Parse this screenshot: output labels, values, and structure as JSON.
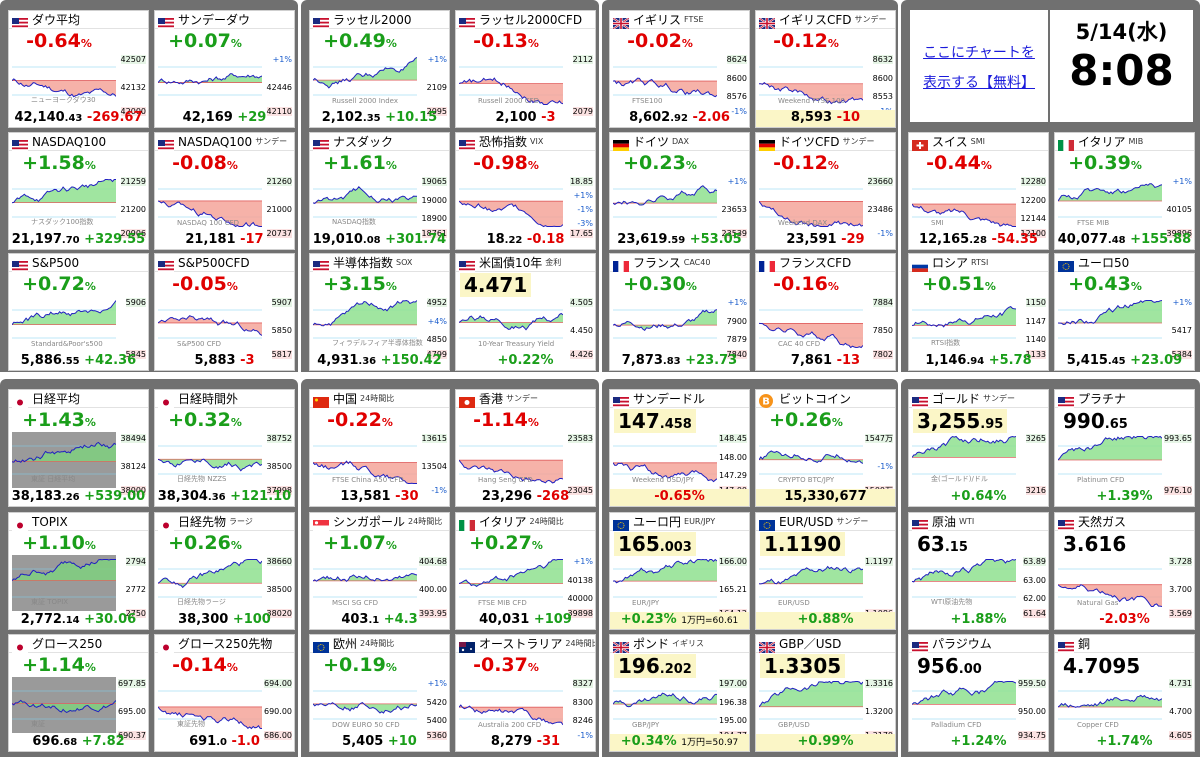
{
  "promo": {
    "line1": "ここにチャートを",
    "line2": "表示する【無料】"
  },
  "clock": {
    "date": "5/14(水)",
    "time": "8:08"
  },
  "colors": {
    "up": "#1a9e1a",
    "down": "#e00000",
    "panel": "#707070",
    "highlight": "#fbf6c7"
  },
  "cards": [
    {
      "id": "dow",
      "name": "ダウ平均",
      "sub": "",
      "flag": "us",
      "pct": "-0.64",
      "dir": "dn",
      "price_main": "42,140",
      "price_dec": ".43",
      "change": "-269.67",
      "levels": [
        "42507",
        "42132",
        "42000"
      ],
      "watermark": "ニューヨークダウ30"
    },
    {
      "id": "sunday-dow",
      "name": "サンデーダウ",
      "sub": "",
      "flag": "us",
      "pct": "+0.07",
      "dir": "up",
      "price_main": "42,169",
      "price_dec": "",
      "change": "+29",
      "levels": [
        "+1%",
        "42446",
        "42110"
      ],
      "watermark": ""
    },
    {
      "id": "russell",
      "name": "ラッセル2000",
      "sub": "",
      "flag": "us",
      "pct": "+0.49",
      "dir": "up",
      "price_main": "2,102",
      "price_dec": ".35",
      "change": "+10.15",
      "levels": [
        "+1%",
        "2109",
        "2095"
      ],
      "watermark": "Russell 2000 Index"
    },
    {
      "id": "russell-cfd",
      "name": "ラッセル2000CFD",
      "sub": "",
      "flag": "us",
      "pct": "-0.13",
      "dir": "dn",
      "price_main": "2,100",
      "price_dec": "",
      "change": "-3",
      "levels": [
        "2112",
        "2079"
      ],
      "watermark": "Russell 2000 CFD"
    },
    {
      "id": "ftse",
      "name": "イギリス",
      "sub": "FTSE",
      "flag": "uk",
      "pct": "-0.02",
      "dir": "dn",
      "price_main": "8,602",
      "price_dec": ".92",
      "change": "-2.06",
      "levels": [
        "8624",
        "8600",
        "8576",
        "-1%"
      ],
      "watermark": "FTSE100"
    },
    {
      "id": "ftse-cfd",
      "name": "イギリスCFD",
      "sub": "サンデー",
      "flag": "uk",
      "pct": "-0.12",
      "dir": "dn",
      "price_main": "8,593",
      "price_dec": "",
      "change": "-10",
      "levels": [
        "8632",
        "8600",
        "8553",
        "-1%"
      ],
      "watermark": "Weekend FTSE 100",
      "yellow": true
    },
    {
      "id": "nasdaq",
      "name": "NASDAQ100",
      "sub": "",
      "flag": "us",
      "pct": "+1.58",
      "dir": "up",
      "price_main": "21,197",
      "price_dec": ".70",
      "change": "+329.55",
      "levels": [
        "21259",
        "21200",
        "20906"
      ],
      "watermark": "ナスダック100指数"
    },
    {
      "id": "nasdaq-sunday",
      "name": "NASDAQ100",
      "sub": "サンデー",
      "flag": "us",
      "pct": "-0.08",
      "dir": "dn",
      "price_main": "21,181",
      "price_dec": "",
      "change": "-17",
      "levels": [
        "21260",
        "21000",
        "20737"
      ],
      "watermark": "NASDAQ 100 CFD"
    },
    {
      "id": "nasdaq-jp",
      "name": "ナスダック",
      "sub": "",
      "flag": "us",
      "pct": "+1.61",
      "dir": "up",
      "price_main": "19,010",
      "price_dec": ".08",
      "change": "+301.74",
      "levels": [
        "19065",
        "19000",
        "18900",
        "18761"
      ],
      "watermark": "NASDAQ指数"
    },
    {
      "id": "vix",
      "name": "恐怖指数",
      "sub": "VIX",
      "flag": "us",
      "pct": "-0.98",
      "dir": "dn",
      "price_main": "18",
      "price_dec": ".22",
      "change": "-0.18",
      "levels": [
        "18.85",
        "+1%",
        "-1%",
        "-3%",
        "17.65"
      ],
      "watermark": ""
    },
    {
      "id": "dax",
      "name": "ドイツ",
      "sub": "DAX",
      "flag": "de",
      "pct": "+0.23",
      "dir": "up",
      "price_main": "23,619",
      "price_dec": ".59",
      "change": "+53.05",
      "levels": [
        "+1%",
        "23653",
        "23539"
      ],
      "watermark": ""
    },
    {
      "id": "dax-cfd",
      "name": "ドイツCFD",
      "sub": "サンデー",
      "flag": "de",
      "pct": "-0.12",
      "dir": "dn",
      "price_main": "23,591",
      "price_dec": "",
      "change": "-29",
      "levels": [
        "23660",
        "23486",
        "-1%"
      ],
      "watermark": "Weekend DAX"
    },
    {
      "id": "smi",
      "name": "スイス",
      "sub": "SMI",
      "flag": "ch",
      "pct": "-0.44",
      "dir": "dn",
      "price_main": "12,165",
      "price_dec": ".28",
      "change": "-54.35",
      "levels": [
        "12280",
        "12200",
        "12144",
        "12100"
      ],
      "watermark": "SMI"
    },
    {
      "id": "mib",
      "name": "イタリア",
      "sub": "MIB",
      "flag": "it",
      "pct": "+0.39",
      "dir": "up",
      "price_main": "40,077",
      "price_dec": ".48",
      "change": "+155.88",
      "levels": [
        "+1%",
        "40105",
        "39896"
      ],
      "watermark": "FTSE MIB"
    },
    {
      "id": "sp500",
      "name": "S&P500",
      "sub": "",
      "flag": "us",
      "pct": "+0.72",
      "dir": "up",
      "price_main": "5,886",
      "price_dec": ".55",
      "change": "+42.36",
      "levels": [
        "5906",
        "5845"
      ],
      "watermark": "Standard&Poor's500"
    },
    {
      "id": "sp500-cfd",
      "name": "S&P500CFD",
      "sub": "",
      "flag": "us",
      "pct": "-0.05",
      "dir": "dn",
      "price_main": "5,883",
      "price_dec": "",
      "change": "-3",
      "levels": [
        "5907",
        "5850",
        "5817"
      ],
      "watermark": "S&P500 CFD"
    },
    {
      "id": "sox",
      "name": "半導体指数",
      "sub": "SOX",
      "flag": "us",
      "pct": "+3.15",
      "dir": "up",
      "price_main": "4,931",
      "price_dec": ".36",
      "change": "+150.42",
      "levels": [
        "4952",
        "+4%",
        "4850",
        "4799"
      ],
      "watermark": "フィラデルフィア半導体指数"
    },
    {
      "id": "us10y",
      "name": "米国債10年",
      "sub": "金利",
      "flag": "us",
      "bigprice": "4.471",
      "bigdec": "",
      "dir": "up",
      "change": "+0.22",
      "changeunit": "%",
      "levels": [
        "4.505",
        "4.450",
        "4.426"
      ],
      "watermark": "10-Year Treasury Yield",
      "bigstyle": true
    },
    {
      "id": "cac",
      "name": "フランス",
      "sub": "CAC40",
      "flag": "fr",
      "pct": "+0.30",
      "dir": "up",
      "price_main": "7,873",
      "price_dec": ".83",
      "change": "+23.73",
      "levels": [
        "+1%",
        "7900",
        "7879",
        "7840"
      ],
      "watermark": ""
    },
    {
      "id": "cac-cfd",
      "name": "フランスCFD",
      "sub": "",
      "flag": "fr",
      "pct": "-0.16",
      "dir": "dn",
      "price_main": "7,861",
      "price_dec": "",
      "change": "-13",
      "levels": [
        "7884",
        "7850",
        "7802"
      ],
      "watermark": "CAC 40 CFD"
    },
    {
      "id": "rtsi",
      "name": "ロシア",
      "sub": "RTSI",
      "flag": "ru",
      "pct": "+0.51",
      "dir": "up",
      "price_main": "1,146",
      "price_dec": ".94",
      "change": "+5.78",
      "levels": [
        "1150",
        "1147",
        "1140",
        "1133"
      ],
      "watermark": "RTSI指数"
    },
    {
      "id": "euro50",
      "name": "ユーロ50",
      "sub": "",
      "flag": "eu",
      "pct": "+0.43",
      "dir": "up",
      "price_main": "5,415",
      "price_dec": ".45",
      "change": "+23.09",
      "levels": [
        "+1%",
        "5417",
        "5384"
      ],
      "watermark": ""
    },
    {
      "id": "nikkei",
      "name": "日経平均",
      "sub": "",
      "flag": "jp",
      "pct": "+1.43",
      "dir": "up",
      "price_main": "38,183",
      "price_dec": ".26",
      "change": "+539.00",
      "levels": [
        "38494",
        "38124",
        "38000"
      ],
      "watermark": "東証 日経平均",
      "gray": true
    },
    {
      "id": "nikkei-after",
      "name": "日経時間外",
      "sub": "",
      "flag": "jp",
      "pct": "+0.32",
      "dir": "up",
      "price_main": "38,304",
      "price_dec": ".36",
      "change": "+121.10",
      "levels": [
        "38752",
        "38500",
        "37998"
      ],
      "watermark": "日経先物 NZZS"
    },
    {
      "id": "china",
      "name": "中国",
      "sub": "24時間比",
      "flag": "cn",
      "pct": "-0.22",
      "dir": "dn",
      "price_main": "13,581",
      "price_dec": "",
      "change": "-30",
      "levels": [
        "13615",
        "13504",
        "-1%"
      ],
      "watermark": "FTSE China A50 CFD"
    },
    {
      "id": "hk",
      "name": "香港",
      "sub": "サンデー",
      "flag": "hk",
      "pct": "-1.14",
      "dir": "dn",
      "price_main": "23,296",
      "price_dec": "",
      "change": "-268",
      "levels": [
        "23583",
        "23045"
      ],
      "watermark": "Hang Seng CFD"
    },
    {
      "id": "usdjpy",
      "name": "サンデードル",
      "sub": "",
      "flag": "us",
      "bigprice": "147",
      "bigdec": ".458",
      "dir": "dn",
      "change": "-0.65",
      "changeunit": "%",
      "levels": [
        "148.45",
        "148.00",
        "147.29",
        "147.00"
      ],
      "watermark": "Weekend USD/JPY",
      "bigstyle": true,
      "yellowfoot": true
    },
    {
      "id": "btc",
      "name": "ビットコイン",
      "sub": "",
      "flag": "btc",
      "pct": "+0.26",
      "dir": "up",
      "price_main": "15,330,677",
      "price_dec": "",
      "change": "",
      "levels": [
        "1547万",
        "-1%",
        "1500万"
      ],
      "watermark": "CRYPTO BTC/JPY",
      "yellow": true
    },
    {
      "id": "gold",
      "name": "ゴールド",
      "sub": "サンデー",
      "flag": "us",
      "bigprice": "3,255",
      "bigdec": ".95",
      "dir": "up",
      "change": "+0.64",
      "changeunit": "%",
      "levels": [
        "3265",
        "3216"
      ],
      "watermark": "金(ゴールド)/ドル",
      "bigstyle": true
    },
    {
      "id": "platinum",
      "name": "プラチナ",
      "sub": "",
      "flag": "us",
      "bigprice": "990",
      "bigdec": ".65",
      "dir": "up",
      "change": "+1.39",
      "changeunit": "%",
      "levels": [
        "993.65",
        "976.10"
      ],
      "watermark": "Platinum CFD",
      "bigstyle": true,
      "nohl": true
    },
    {
      "id": "topix",
      "name": "TOPIX",
      "sub": "",
      "flag": "jp",
      "pct": "+1.10",
      "dir": "up",
      "price_main": "2,772",
      "price_dec": ".14",
      "change": "+30.06",
      "levels": [
        "2794",
        "2772",
        "2750"
      ],
      "watermark": "東証 TOPIX",
      "gray": true
    },
    {
      "id": "nikkei-fut",
      "name": "日経先物",
      "sub": "ラージ",
      "flag": "jp",
      "pct": "+0.26",
      "dir": "up",
      "price_main": "38,300",
      "price_dec": "",
      "change": "+100",
      "levels": [
        "38660",
        "38500",
        "38020"
      ],
      "watermark": "日経先物ラージ"
    },
    {
      "id": "sgx",
      "name": "シンガポール",
      "sub": "24時間比",
      "flag": "sg",
      "pct": "+1.07",
      "dir": "up",
      "price_main": "403",
      "price_dec": ".1",
      "change": "+4.3",
      "levels": [
        "404.68",
        "400.00",
        "393.95"
      ],
      "watermark": "MSCI SG CFD"
    },
    {
      "id": "italy24",
      "name": "イタリア",
      "sub": "24時間比",
      "flag": "it",
      "pct": "+0.27",
      "dir": "up",
      "price_main": "40,031",
      "price_dec": "",
      "change": "+109",
      "levels": [
        "+1%",
        "40138",
        "40000",
        "39898"
      ],
      "watermark": "FTSE MIB CFD"
    },
    {
      "id": "eurjpy",
      "name": "ユーロ円",
      "sub": "EUR/JPY",
      "flag": "eu",
      "bigprice": "165",
      "bigdec": ".003",
      "dir": "up",
      "change": "+0.23",
      "changeunit": "%",
      "extra": "1万円=60.61",
      "levels": [
        "166.00",
        "165.21",
        "164.12"
      ],
      "watermark": "EUR/JPY",
      "bigstyle": true,
      "yellowfoot": true
    },
    {
      "id": "eurusd",
      "name": "EUR/USD",
      "sub": "サンデー",
      "flag": "eu",
      "bigprice": "1.1190",
      "bigdec": "",
      "dir": "up",
      "change": "+0.88",
      "changeunit": "%",
      "levels": [
        "1.1197",
        "1.1086"
      ],
      "watermark": "EUR/USD",
      "bigstyle": true,
      "yellowfoot": true
    },
    {
      "id": "oil",
      "name": "原油",
      "sub": "WTI",
      "flag": "us",
      "bigprice": "63",
      "bigdec": ".15",
      "dir": "up",
      "change": "+1.88",
      "changeunit": "%",
      "levels": [
        "63.89",
        "63.00",
        "62.00",
        "61.64"
      ],
      "watermark": "WTI原油先物",
      "bigstyle": true,
      "nohl": true
    },
    {
      "id": "natgas",
      "name": "天然ガス",
      "sub": "",
      "flag": "us",
      "bigprice": "3.616",
      "bigdec": "",
      "dir": "dn",
      "change": "-2.03",
      "changeunit": "%",
      "levels": [
        "3.728",
        "3.700",
        "3.569"
      ],
      "watermark": "Natural Gas",
      "bigstyle": true,
      "nohl": true
    },
    {
      "id": "growth250",
      "name": "グロース250",
      "sub": "",
      "flag": "jp",
      "pct": "+1.14",
      "dir": "up",
      "price_main": "696",
      "price_dec": ".68",
      "change": "+7.82",
      "levels": [
        "697.85",
        "695.00",
        "690.37"
      ],
      "watermark": "東証",
      "gray": true
    },
    {
      "id": "growth250-fut",
      "name": "グロース250先物",
      "sub": "",
      "flag": "jp",
      "pct": "-0.14",
      "dir": "dn",
      "price_main": "691",
      "price_dec": ".0",
      "change": "-1.0",
      "levels": [
        "694.00",
        "690.00",
        "686.00"
      ],
      "watermark": "東証先物"
    },
    {
      "id": "europe",
      "name": "欧州",
      "sub": "24時間比",
      "flag": "eu",
      "pct": "+0.19",
      "dir": "up",
      "price_main": "5,405",
      "price_dec": "",
      "change": "+10",
      "levels": [
        "+1%",
        "5420",
        "5400",
        "5360"
      ],
      "watermark": "DOW EURO 50 CFD"
    },
    {
      "id": "australia",
      "name": "オーストラリア",
      "sub": "24時間比",
      "flag": "au",
      "pct": "-0.37",
      "dir": "dn",
      "price_main": "8,279",
      "price_dec": "",
      "change": "-31",
      "levels": [
        "8327",
        "8300",
        "8246",
        "-1%"
      ],
      "watermark": "Australia 200 CFD"
    },
    {
      "id": "gbpjpy",
      "name": "ポンド",
      "sub": "イギリス",
      "flag": "uk",
      "bigprice": "196",
      "bigdec": ".202",
      "dir": "up",
      "change": "+0.34",
      "changeunit": "%",
      "extra": "1万円=50.97",
      "levels": [
        "197.00",
        "196.38",
        "195.00",
        "194.77"
      ],
      "watermark": "GBP/JPY",
      "bigstyle": true,
      "yellowfoot": true
    },
    {
      "id": "gbpusd",
      "name": "GBP／USD",
      "sub": "",
      "flag": "uk",
      "bigprice": "1.3305",
      "bigdec": "",
      "dir": "up",
      "change": "+0.99",
      "changeunit": "%",
      "levels": [
        "1.3316",
        "1.3200",
        "1.3170"
      ],
      "watermark": "GBP/USD",
      "bigstyle": true,
      "yellowfoot": true
    },
    {
      "id": "palladium",
      "name": "パラジウム",
      "sub": "",
      "flag": "us",
      "bigprice": "956",
      "bigdec": ".00",
      "dir": "up",
      "change": "+1.24",
      "changeunit": "%",
      "levels": [
        "959.50",
        "950.00",
        "934.75"
      ],
      "watermark": "Palladium CFD",
      "bigstyle": true,
      "nohl": true
    },
    {
      "id": "copper",
      "name": "銅",
      "sub": "",
      "flag": "us",
      "bigprice": "4.7095",
      "bigdec": "",
      "dir": "up",
      "change": "+1.74",
      "changeunit": "%",
      "levels": [
        "4.731",
        "4.700",
        "4.605"
      ],
      "watermark": "Copper CFD",
      "bigstyle": true,
      "nohl": true
    }
  ]
}
